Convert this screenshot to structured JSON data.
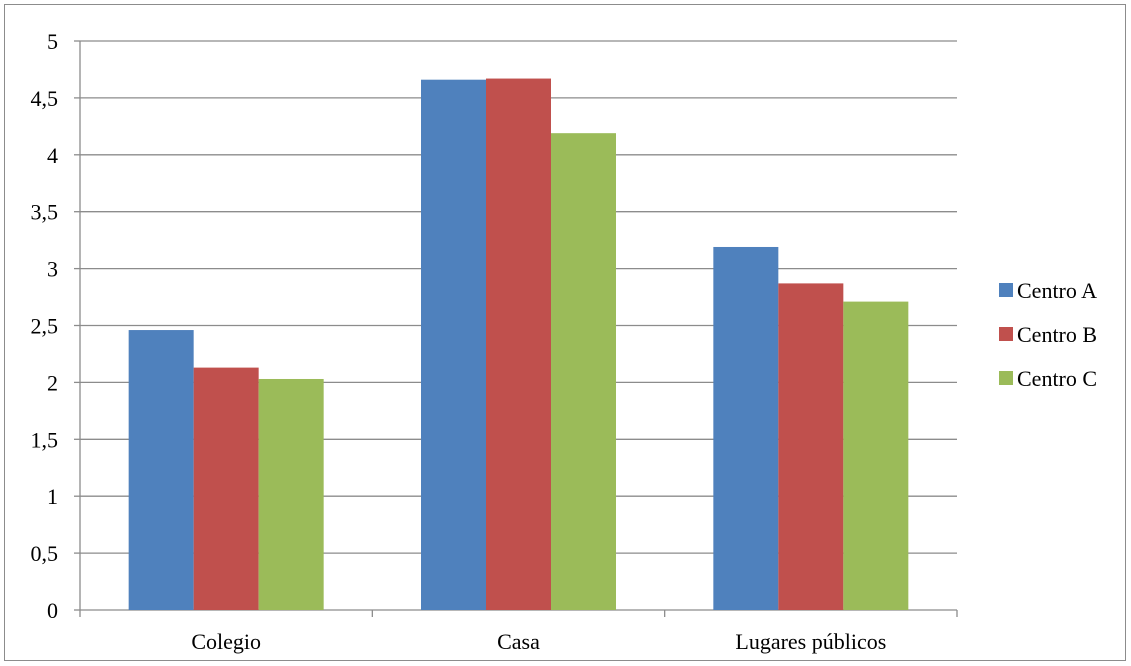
{
  "chart_data": {
    "type": "bar",
    "categories": [
      "Colegio",
      "Casa",
      "Lugares públicos"
    ],
    "series": [
      {
        "name": "Centro A",
        "color": "#4F81BD",
        "values": [
          2.46,
          4.66,
          3.19
        ]
      },
      {
        "name": "Centro B",
        "color": "#C0504D",
        "values": [
          2.13,
          4.67,
          2.87
        ]
      },
      {
        "name": "Centro C",
        "color": "#9BBB59",
        "values": [
          2.03,
          4.19,
          2.71
        ]
      }
    ],
    "yticks": [
      "0",
      "0,5",
      "1",
      "1,5",
      "2",
      "2,5",
      "3",
      "3,5",
      "4",
      "4,5",
      "5"
    ],
    "ylim": [
      0,
      5
    ],
    "grid": true,
    "legend_position": "right"
  }
}
